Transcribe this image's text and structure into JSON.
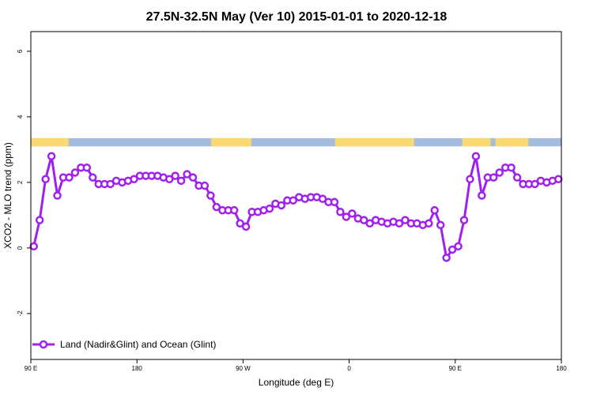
{
  "chart_data": {
    "type": "line",
    "title": "27.5N-32.5N May (Ver 10)   2015-01-01 to 2020-12-18",
    "xlabel": "Longitude (deg E)",
    "ylabel": "XCO2 - MLO trend (ppm)",
    "xlim": [
      90,
      540
    ],
    "ylim": [
      -3.4,
      6.6
    ],
    "x_ticks": [
      {
        "value": 90,
        "label": "90 E"
      },
      {
        "value": 180,
        "label": "180"
      },
      {
        "value": 270,
        "label": "90 W"
      },
      {
        "value": 360,
        "label": "0"
      },
      {
        "value": 450,
        "label": "90 E"
      },
      {
        "value": 540,
        "label": "180"
      }
    ],
    "y_ticks": [
      {
        "value": -2,
        "label": "-2"
      },
      {
        "value": 0,
        "label": "0"
      },
      {
        "value": 2,
        "label": "2"
      },
      {
        "value": 4,
        "label": "4"
      },
      {
        "value": 6,
        "label": "6"
      }
    ],
    "legend": {
      "position": "bottom-left"
    },
    "colors": {
      "series": "#a020f0",
      "land": "#fad970",
      "ocean": "#a4bcde"
    },
    "surface_band": {
      "y_range": [
        3.1,
        3.35
      ],
      "land_spans": [
        [
          90,
          122
        ],
        [
          243,
          277
        ],
        [
          348,
          415
        ],
        [
          456,
          480
        ],
        [
          484,
          512
        ]
      ]
    },
    "series": [
      {
        "name": "Land (Nadir&Glint) and Ocean (Glint)",
        "x": [
          92.5,
          97.5,
          102.5,
          107.5,
          112.5,
          117.5,
          122.5,
          127.5,
          132.5,
          137.5,
          142.5,
          147.5,
          152.5,
          157.5,
          162.5,
          167.5,
          172.5,
          177.5,
          182.5,
          187.5,
          192.5,
          197.5,
          202.5,
          207.5,
          212.5,
          217.5,
          222.5,
          227.5,
          232.5,
          237.5,
          242.5,
          247.5,
          252.5,
          257.5,
          262.5,
          267.5,
          272.5,
          277.5,
          282.5,
          287.5,
          292.5,
          297.5,
          302.5,
          307.5,
          312.5,
          317.5,
          322.5,
          327.5,
          332.5,
          337.5,
          342.5,
          347.5,
          352.5,
          357.5,
          362.5,
          367.5,
          372.5,
          377.5,
          382.5,
          387.5,
          392.5,
          397.5,
          402.5,
          407.5,
          412.5,
          417.5,
          422.5,
          427.5,
          432.5,
          437.5,
          442.5,
          447.5,
          452.5,
          457.5,
          462.5,
          467.5,
          472.5,
          477.5,
          482.5,
          487.5,
          492.5,
          497.5,
          502.5,
          507.5,
          512.5,
          517.5,
          522.5,
          527.5,
          532.5,
          537.5
        ],
        "values": [
          0.05,
          0.85,
          2.1,
          2.8,
          1.6,
          2.15,
          2.15,
          2.3,
          2.45,
          2.45,
          2.15,
          1.95,
          1.95,
          1.95,
          2.05,
          2.0,
          2.05,
          2.1,
          2.2,
          2.2,
          2.2,
          2.2,
          2.15,
          2.1,
          2.2,
          2.05,
          2.25,
          2.15,
          1.9,
          1.9,
          1.6,
          1.25,
          1.15,
          1.15,
          1.15,
          0.75,
          0.65,
          1.1,
          1.1,
          1.15,
          1.2,
          1.35,
          1.3,
          1.45,
          1.45,
          1.55,
          1.5,
          1.55,
          1.55,
          1.5,
          1.4,
          1.4,
          1.1,
          0.95,
          1.05,
          0.9,
          0.85,
          0.75,
          0.85,
          0.8,
          0.75,
          0.8,
          0.75,
          0.85,
          0.75,
          0.75,
          0.7,
          0.75,
          1.15,
          0.7,
          -0.3,
          -0.05,
          0.05,
          0.85,
          2.1,
          2.8,
          1.6,
          2.15,
          2.15,
          2.3,
          2.45,
          2.45,
          2.15,
          1.95,
          1.95,
          1.95,
          2.05,
          2.0,
          2.05,
          2.1
        ]
      }
    ]
  }
}
